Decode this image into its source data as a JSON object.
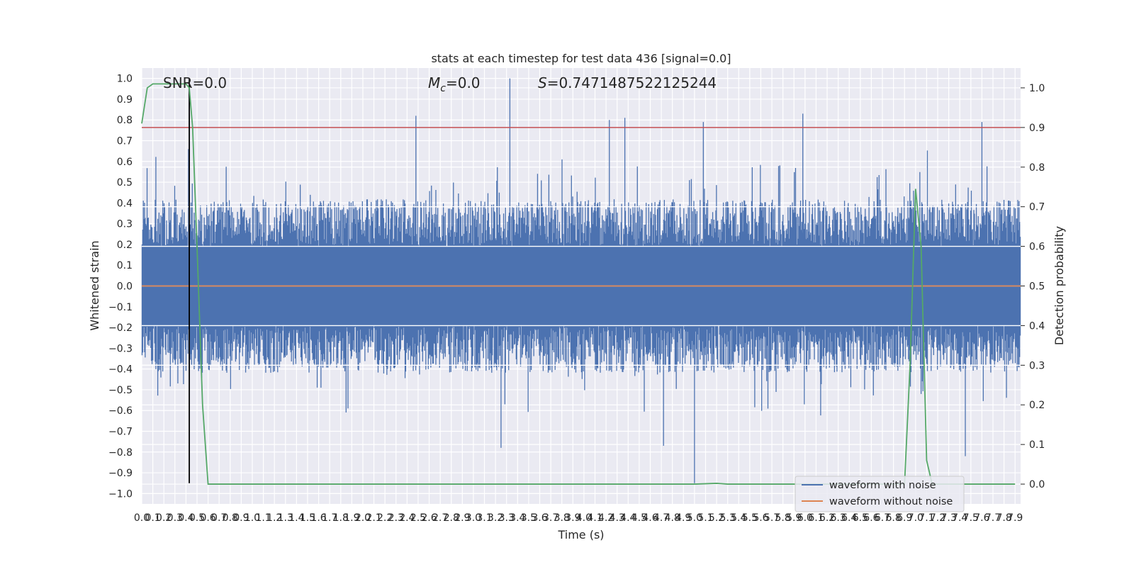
{
  "chart_data": {
    "type": "line",
    "title": "stats at each timestep for test data 436 [signal=0.0]",
    "xlabel": "Time (s)",
    "ylabel_left": "Whitened strain",
    "ylabel_right": "Detection probability",
    "xlim": [
      0.0,
      7.95
    ],
    "ylim_left": [
      -1.05,
      1.05
    ],
    "ylim_right": [
      -0.05,
      1.05
    ],
    "x_ticks": [
      0.0,
      0.1,
      0.2,
      0.3,
      0.4,
      0.5,
      0.6,
      0.7,
      0.8,
      0.9,
      1.0,
      1.1,
      1.2,
      1.3,
      1.4,
      1.5,
      1.6,
      1.7,
      1.8,
      1.9,
      2.0,
      2.1,
      2.2,
      2.3,
      2.4,
      2.5,
      2.6,
      2.7,
      2.8,
      2.9,
      3.0,
      3.1,
      3.2,
      3.3,
      3.4,
      3.5,
      3.6,
      3.7,
      3.8,
      3.9,
      4.0,
      4.1,
      4.2,
      4.3,
      4.4,
      4.5,
      4.6,
      4.7,
      4.8,
      4.9,
      5.0,
      5.1,
      5.2,
      5.3,
      5.4,
      5.5,
      5.6,
      5.7,
      5.8,
      5.9,
      6.0,
      6.1,
      6.2,
      6.3,
      6.4,
      6.5,
      6.6,
      6.7,
      6.8,
      6.9,
      7.0,
      7.1,
      7.2,
      7.3,
      7.4,
      7.5,
      7.6,
      7.7,
      7.8,
      7.9
    ],
    "y_ticks_left": [
      "1.0",
      "0.9",
      "0.8",
      "0.7",
      "0.6",
      "0.5",
      "0.4",
      "0.3",
      "0.2",
      "0.1",
      "0.0",
      "−0.1",
      "−0.2",
      "−0.3",
      "−0.4",
      "−0.5",
      "−0.6",
      "−0.7",
      "−0.8",
      "−0.9",
      "−1.0"
    ],
    "y_ticks_right": [
      "1.0",
      "0.9",
      "0.8",
      "0.7",
      "0.6",
      "0.5",
      "0.4",
      "0.3",
      "0.2",
      "0.1",
      "0.0"
    ],
    "grid": true,
    "legend_position": "lower-right",
    "annotations": {
      "snr": "SNR=0.0",
      "mc_symbol": "M",
      "mc_sub": "c",
      "mc_value": "=0.0",
      "s_symbol": "S",
      "s_value": "=0.7471487522125244"
    },
    "series": [
      {
        "name": "waveform with noise",
        "axis": "left",
        "color": "#4c72b0",
        "envelope_note_values": {
          "typical_upper": 0.38,
          "typical_lower": -0.38,
          "peaks": [
            {
              "x": 0.43,
              "y": 1.0
            },
            {
              "x": 2.48,
              "y": 0.82
            },
            {
              "x": 3.33,
              "y": 1.0
            },
            {
              "x": 4.23,
              "y": 0.8
            },
            {
              "x": 4.37,
              "y": 0.81
            },
            {
              "x": 5.08,
              "y": 0.79
            },
            {
              "x": 5.98,
              "y": 0.83
            },
            {
              "x": 7.6,
              "y": 0.79
            },
            {
              "x": 3.25,
              "y": -0.78
            },
            {
              "x": 4.72,
              "y": -0.77
            },
            {
              "x": 5.0,
              "y": -0.95
            },
            {
              "x": 7.45,
              "y": -0.82
            }
          ]
        }
      },
      {
        "name": "waveform without noise",
        "axis": "left",
        "color": "#dd8452",
        "x": [
          0.0,
          7.95
        ],
        "y": [
          0.0,
          0.0
        ]
      },
      {
        "axis": "right",
        "color": "#55a868",
        "x": [
          0.0,
          0.05,
          0.1,
          0.2,
          0.3,
          0.4,
          0.43,
          0.46,
          0.5,
          0.55,
          0.6,
          1.0,
          2.0,
          3.0,
          4.0,
          5.0,
          5.2,
          5.3,
          6.0,
          6.8,
          6.9,
          6.95,
          7.0,
          7.05,
          7.1,
          7.15,
          7.5,
          7.9
        ],
        "y": [
          0.91,
          1.0,
          1.01,
          1.01,
          1.01,
          1.01,
          1.0,
          0.9,
          0.6,
          0.2,
          0.0,
          0.0,
          0.0,
          0.0,
          0.0,
          0.0,
          0.002,
          0.0,
          0.0,
          0.0,
          0.0,
          0.3,
          0.745,
          0.6,
          0.06,
          0.0,
          0.0,
          0.0
        ]
      }
    ],
    "threshold_line": {
      "axis": "right",
      "y": 0.9,
      "color": "#c44e52"
    },
    "vertical_marker": {
      "x": 0.43,
      "y_top": 1.0,
      "y_bottom": -0.95,
      "color": "#000000"
    }
  }
}
